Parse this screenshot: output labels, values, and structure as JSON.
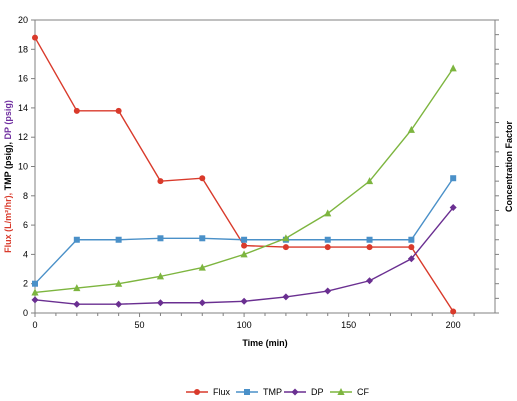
{
  "chart_data": {
    "type": "line",
    "title": "",
    "xlabel": "Time (min)",
    "ylabel_parts": [
      {
        "text": "Flux (L/m²/hr), ",
        "color": "#d93a2b"
      },
      {
        "text": "TMP (psig), ",
        "color": "#000000"
      },
      {
        "text": "DP (psig)",
        "color": "#7030a0"
      }
    ],
    "y2label": "Concentration Factor",
    "xlim": [
      0,
      220
    ],
    "ylim": [
      0,
      20
    ],
    "y2lim": [
      0,
      20
    ],
    "xticks": [
      0,
      50,
      100,
      150,
      200
    ],
    "yticks": [
      0,
      2,
      4,
      6,
      8,
      10,
      12,
      14,
      16,
      18,
      20
    ],
    "legend_position": "bottom",
    "series": [
      {
        "name": "Flux",
        "color": "#d93a2b",
        "marker": "circle",
        "axis": "left",
        "x": [
          0,
          20,
          40,
          60,
          80,
          100,
          120,
          140,
          160,
          180,
          200
        ],
        "values": [
          18.8,
          13.8,
          13.8,
          9.0,
          9.2,
          4.6,
          4.5,
          4.5,
          4.5,
          4.5,
          0.1
        ]
      },
      {
        "name": "TMP",
        "color": "#4a90c8",
        "marker": "square",
        "axis": "left",
        "x": [
          0,
          20,
          40,
          60,
          80,
          100,
          120,
          140,
          160,
          180,
          200
        ],
        "values": [
          2.0,
          5.0,
          5.0,
          5.1,
          5.1,
          5.0,
          5.0,
          5.0,
          5.0,
          5.0,
          9.2
        ]
      },
      {
        "name": "DP",
        "color": "#6a2f91",
        "marker": "diamond",
        "axis": "left",
        "x": [
          0,
          20,
          40,
          60,
          80,
          100,
          120,
          140,
          160,
          180,
          200
        ],
        "values": [
          0.9,
          0.6,
          0.6,
          0.7,
          0.7,
          0.8,
          1.1,
          1.5,
          2.2,
          3.7,
          7.2
        ]
      },
      {
        "name": "CF",
        "color": "#7db53f",
        "marker": "triangle",
        "axis": "right",
        "x": [
          0,
          20,
          40,
          60,
          80,
          100,
          120,
          140,
          160,
          180,
          200
        ],
        "values": [
          1.4,
          1.7,
          2.0,
          2.5,
          3.1,
          4.0,
          5.1,
          6.8,
          9.0,
          12.5,
          16.7
        ]
      }
    ]
  }
}
